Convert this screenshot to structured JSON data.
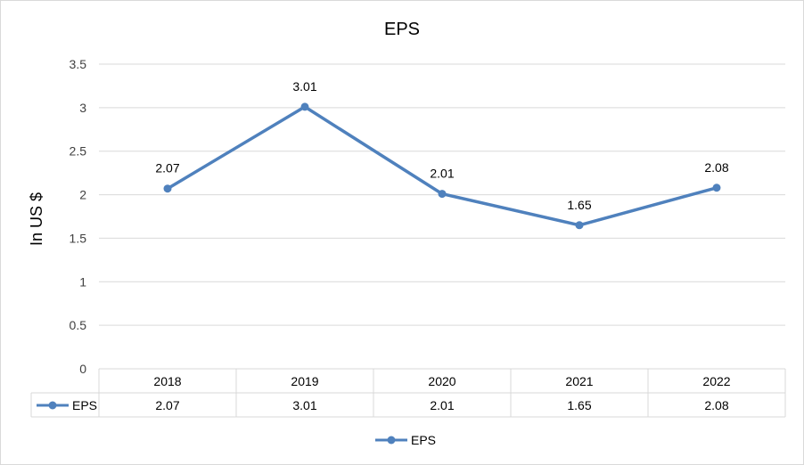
{
  "chart_data": {
    "type": "line",
    "title": "EPS",
    "xlabel": "",
    "ylabel": "In US $",
    "categories": [
      "2018",
      "2019",
      "2020",
      "2021",
      "2022"
    ],
    "series": [
      {
        "name": "EPS",
        "values": [
          2.07,
          3.01,
          2.01,
          1.65,
          2.08
        ],
        "color": "#4f81bd"
      }
    ],
    "data_labels": [
      "2.07",
      "3.01",
      "2.01",
      "1.65",
      "2.08"
    ],
    "ylim": [
      0,
      3.5
    ],
    "yticks": [
      0,
      0.5,
      1,
      1.5,
      2,
      2.5,
      3,
      3.5
    ],
    "ytick_labels": [
      "0",
      "0.5",
      "1",
      "1.5",
      "2",
      "2.5",
      "3",
      "3.5"
    ],
    "grid": true,
    "legend": "bottom",
    "data_table": {
      "row_label": "EPS",
      "cells": [
        "2.07",
        "3.01",
        "2.01",
        "1.65",
        "2.08"
      ]
    }
  }
}
